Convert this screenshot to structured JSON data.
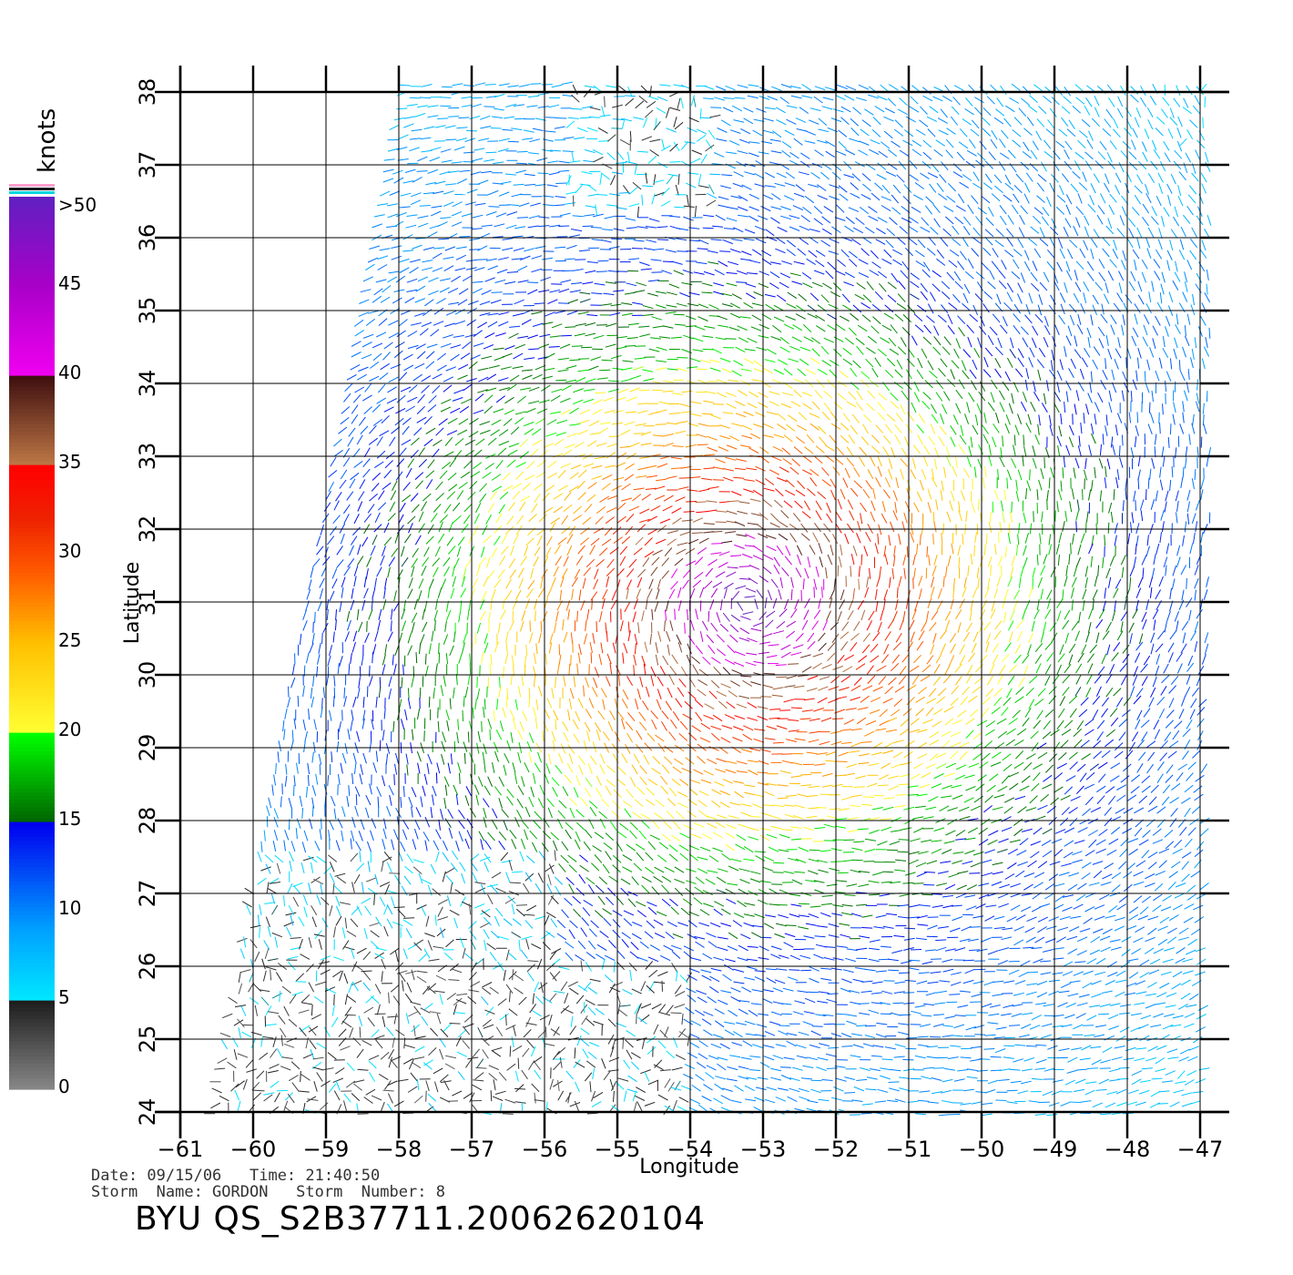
{
  "plot": {
    "lon_min": -61,
    "lon_max": -47,
    "lat_min": 24,
    "lat_max": 38,
    "xlabel": "Longitude",
    "ylabel": "Latitude",
    "lon_ticks": [
      "-61",
      "-60",
      "-59",
      "-58",
      "-57",
      "-56",
      "-55",
      "-54",
      "-53",
      "-52",
      "-51",
      "-50",
      "-49",
      "-48",
      "-47"
    ],
    "lat_ticks": [
      "24",
      "25",
      "26",
      "27",
      "28",
      "29",
      "30",
      "31",
      "32",
      "33",
      "34",
      "35",
      "36",
      "37",
      "38"
    ]
  },
  "storm_center": {
    "lon": -53.2,
    "lat": 31.0
  },
  "legend": {
    "unit": "knots",
    "labels": [
      {
        "text": "0",
        "value": 0
      },
      {
        "text": "5",
        "value": 5
      },
      {
        "text": "10",
        "value": 10
      },
      {
        "text": "15",
        "value": 15
      },
      {
        "text": "20",
        "value": 20
      },
      {
        "text": "25",
        "value": 25
      },
      {
        "text": "30",
        "value": 30
      },
      {
        "text": "35",
        "value": 35
      },
      {
        "text": "40",
        "value": 40
      },
      {
        "text": "45",
        "value": 45
      },
      {
        "text": ">50",
        "value": 50
      }
    ],
    "colors": {
      "0": "#888888",
      "5": "#00e8ff",
      "10": "#0090ff",
      "15": "#0000ee",
      "17": "#008a00",
      "20": "#00ff00",
      "22": "#ffff33",
      "25": "#ffc000",
      "28": "#ff6a00",
      "32": "#ee2200",
      "35": "#ff0000",
      "37": "#b87040",
      "40": "#401010",
      "45": "#cc00cc",
      "50": "#6020c0"
    }
  },
  "footer": {
    "date_line": "Date: 09/15/06   Time: 21:40:50",
    "storm_line": "Storm  Name: GORDON   Storm  Number: 8",
    "title": "BYU  QS_S2B37711.20062620104"
  }
}
